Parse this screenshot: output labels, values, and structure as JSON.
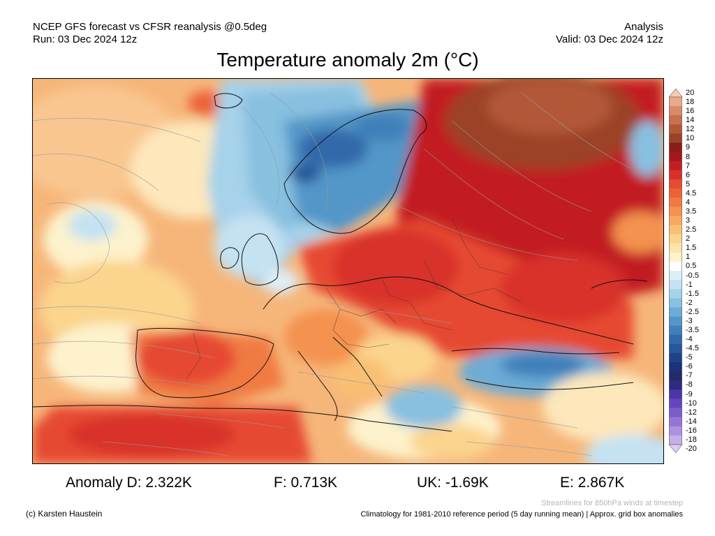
{
  "header": {
    "left_line1": "NCEP GFS forecast vs CFSR reanalysis @0.5deg",
    "left_line2": "Run: 03 Dec 2024 12z",
    "right_line1": "Analysis",
    "right_line2": "Valid: 03 Dec 2024 12z"
  },
  "title": "Temperature anomaly 2m (°C)",
  "colorbar": {
    "labels": [
      "20",
      "18",
      "16",
      "14",
      "12",
      "10",
      "9",
      "8",
      "7",
      "6",
      "5",
      "4.5",
      "4",
      "3.5",
      "3",
      "2.5",
      "2",
      "1.5",
      "1",
      "0.5",
      "-0.5",
      "-1",
      "-1.5",
      "-2",
      "-2.5",
      "-3",
      "-3.5",
      "-4",
      "-4.5",
      "-5",
      "-6",
      "-7",
      "-8",
      "-9",
      "-10",
      "-12",
      "-14",
      "-16",
      "-18",
      "-20"
    ],
    "colors": [
      "#f7c9b2",
      "#e9a98a",
      "#d98b6c",
      "#c87050",
      "#b25838",
      "#9c4228",
      "#8a1d1a",
      "#a3181b",
      "#c21f22",
      "#d8302b",
      "#e64a31",
      "#ec6238",
      "#f07a42",
      "#f4924f",
      "#f7a95f",
      "#f9bf73",
      "#fbd48d",
      "#fce4aa",
      "#fdf2cc",
      "#ffffff",
      "#ddeef8",
      "#c4e2f2",
      "#a6d2ea",
      "#88c0e0",
      "#6cacd5",
      "#5396c8",
      "#3f80ba",
      "#3169aa",
      "#27569a",
      "#1e4488",
      "#1b3378",
      "#232a6b",
      "#2f2a82",
      "#4b37a8",
      "#6547bd",
      "#7d5cc9",
      "#9676d5",
      "#ae91df",
      "#c6aee9",
      "#ddcdf3"
    ]
  },
  "anomalies": {
    "d": "Anomaly D: 2.322K",
    "f": "F: 0.713K",
    "uk": "UK: -1.69K",
    "e": "E: 2.867K"
  },
  "footer": {
    "streamlines_note": "Streamlines for 850hPa winds at timestep",
    "copyright": "(c) Karsten Haustein",
    "climatology": "Climatology for 1981-2010 reference period (5 day running mean) | Approx. grid box anomalies"
  }
}
